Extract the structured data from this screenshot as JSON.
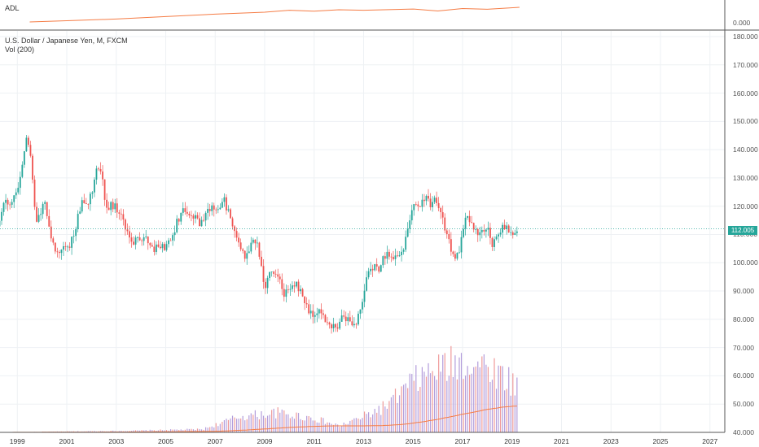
{
  "adl_panel": {
    "label": "ADL",
    "tick_label": "0.000"
  },
  "main_panel": {
    "title": "U.S. Dollar / Japanese Yen, M, FXCM",
    "volume_label": "Vol (200)",
    "last_price_label": "112.005"
  },
  "colors": {
    "up": "#26a69a",
    "down": "#ef5350",
    "adl_line": "#f57c45",
    "vol_ma": "#f57c45",
    "vol_up": "#b39ddb",
    "vol_down": "#ef9a9a",
    "last_price": "#26a69a"
  },
  "chart_data": [
    {
      "type": "line",
      "name": "ADL",
      "x": [
        1999.5,
        2001,
        2003,
        2005,
        2007,
        2009,
        2010,
        2011,
        2012,
        2013,
        2015,
        2016,
        2017,
        2018,
        2019.3
      ],
      "y": [
        0.0,
        0.05,
        0.12,
        0.22,
        0.32,
        0.4,
        0.48,
        0.44,
        0.5,
        0.48,
        0.53,
        0.45,
        0.55,
        0.52,
        0.6
      ]
    },
    {
      "type": "candlestick",
      "title": "U.S. Dollar / Japanese Yen, M, FXCM",
      "xlim": [
        1998.3,
        2027.6
      ],
      "ylim": [
        40,
        182
      ],
      "x_ticks": [
        "1999",
        "2001",
        "2003",
        "2005",
        "2007",
        "2009",
        "2011",
        "2013",
        "2015",
        "2017",
        "2019",
        "2021",
        "2023",
        "2025",
        "2027"
      ],
      "y_ticks": [
        "180.000",
        "170.000",
        "160.000",
        "150.000",
        "140.000",
        "130.000",
        "120.000",
        "110.000",
        "100.000",
        "90.000",
        "80.000",
        "70.000",
        "60.000",
        "50.000",
        "40.000"
      ],
      "last_price": 112.005,
      "anchors": [
        [
          1998.25,
          112
        ],
        [
          1998.5,
          125
        ],
        [
          1998.65,
          118
        ],
        [
          1998.9,
          123
        ],
        [
          1999.2,
          134
        ],
        [
          1999.4,
          146
        ],
        [
          1999.6,
          133
        ],
        [
          1999.75,
          113
        ],
        [
          1999.95,
          118
        ],
        [
          2000.1,
          121
        ],
        [
          2000.35,
          110
        ],
        [
          2000.55,
          103
        ],
        [
          2000.8,
          106
        ],
        [
          2001.0,
          104
        ],
        [
          2001.2,
          108
        ],
        [
          2001.45,
          116
        ],
        [
          2001.65,
          123
        ],
        [
          2001.85,
          120
        ],
        [
          2002.05,
          126
        ],
        [
          2002.2,
          133
        ],
        [
          2002.4,
          131
        ],
        [
          2002.6,
          119
        ],
        [
          2002.8,
          121
        ],
        [
          2003.0,
          119
        ],
        [
          2003.2,
          118
        ],
        [
          2003.4,
          112
        ],
        [
          2003.6,
          107
        ],
        [
          2003.85,
          109
        ],
        [
          2004.05,
          106
        ],
        [
          2004.2,
          110
        ],
        [
          2004.5,
          104
        ],
        [
          2004.7,
          107
        ],
        [
          2004.95,
          105
        ],
        [
          2005.2,
          109
        ],
        [
          2005.45,
          114
        ],
        [
          2005.7,
          119
        ],
        [
          2005.85,
          117
        ],
        [
          2006.0,
          116
        ],
        [
          2006.2,
          117
        ],
        [
          2006.4,
          113
        ],
        [
          2006.65,
          117
        ],
        [
          2006.9,
          120
        ],
        [
          2007.1,
          119
        ],
        [
          2007.35,
          123
        ],
        [
          2007.55,
          117
        ],
        [
          2007.75,
          112
        ],
        [
          2008.0,
          107
        ],
        [
          2008.15,
          102
        ],
        [
          2008.4,
          106
        ],
        [
          2008.6,
          109
        ],
        [
          2008.8,
          102
        ],
        [
          2009.0,
          91
        ],
        [
          2009.2,
          98
        ],
        [
          2009.4,
          96
        ],
        [
          2009.6,
          93
        ],
        [
          2009.8,
          89
        ],
        [
          2010.0,
          92
        ],
        [
          2010.2,
          93
        ],
        [
          2010.4,
          91
        ],
        [
          2010.6,
          86
        ],
        [
          2010.8,
          82
        ],
        [
          2011.0,
          82
        ],
        [
          2011.2,
          82
        ],
        [
          2011.4,
          80
        ],
        [
          2011.6,
          77
        ],
        [
          2011.8,
          78
        ],
        [
          2012.0,
          77
        ],
        [
          2012.2,
          82
        ],
        [
          2012.4,
          79
        ],
        [
          2012.6,
          78
        ],
        [
          2012.85,
          82
        ],
        [
          2013.0,
          90
        ],
        [
          2013.2,
          97
        ],
        [
          2013.4,
          98
        ],
        [
          2013.6,
          98
        ],
        [
          2013.85,
          103
        ],
        [
          2014.0,
          102
        ],
        [
          2014.2,
          102
        ],
        [
          2014.4,
          102
        ],
        [
          2014.6,
          103
        ],
        [
          2014.75,
          110
        ],
        [
          2014.9,
          118
        ],
        [
          2015.1,
          120
        ],
        [
          2015.3,
          121
        ],
        [
          2015.5,
          123
        ],
        [
          2015.7,
          121
        ],
        [
          2015.9,
          122
        ],
        [
          2016.1,
          118
        ],
        [
          2016.3,
          111
        ],
        [
          2016.5,
          106
        ],
        [
          2016.65,
          102
        ],
        [
          2016.85,
          103
        ],
        [
          2017.0,
          112
        ],
        [
          2017.2,
          117
        ],
        [
          2017.4,
          112
        ],
        [
          2017.6,
          111
        ],
        [
          2017.8,
          112
        ],
        [
          2018.0,
          113
        ],
        [
          2018.2,
          107
        ],
        [
          2018.4,
          110
        ],
        [
          2018.6,
          112
        ],
        [
          2018.8,
          113
        ],
        [
          2019.0,
          110
        ],
        [
          2019.1,
          109
        ],
        [
          2019.25,
          112
        ]
      ]
    },
    {
      "type": "bar",
      "name": "Vol (200)",
      "ylim": [
        0,
        1
      ],
      "anchors": [
        [
          1998.2,
          0.0
        ],
        [
          2003.5,
          0.02
        ],
        [
          2006.5,
          0.04
        ],
        [
          2008.0,
          0.2
        ],
        [
          2009.5,
          0.25
        ],
        [
          2011.0,
          0.18
        ],
        [
          2012.0,
          0.08
        ],
        [
          2013.0,
          0.2
        ],
        [
          2014.0,
          0.35
        ],
        [
          2015.0,
          0.65
        ],
        [
          2016.0,
          0.8
        ],
        [
          2017.0,
          0.9
        ],
        [
          2018.0,
          0.85
        ],
        [
          2019.2,
          0.6
        ]
      ]
    }
  ]
}
